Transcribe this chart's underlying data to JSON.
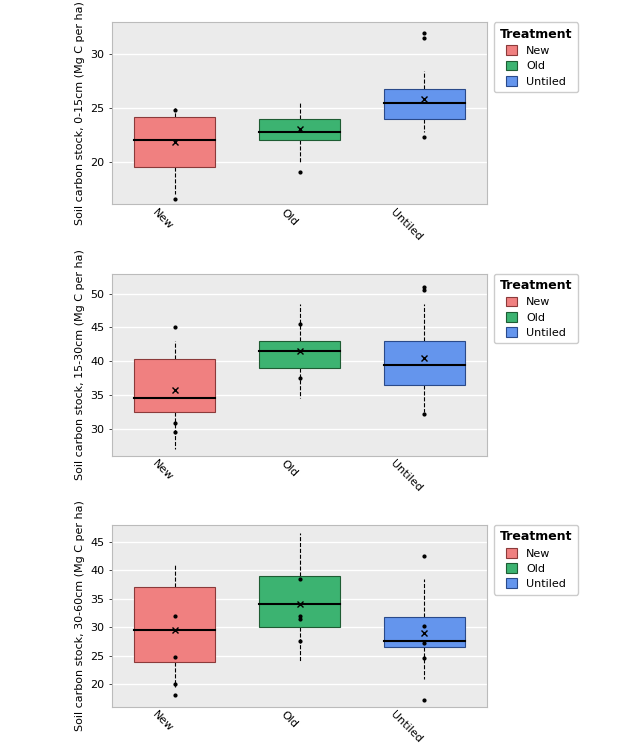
{
  "panels": [
    {
      "ylabel": "Soil carbon stock, 0-15cm (Mg C per ha)",
      "ylim": [
        16,
        33
      ],
      "yticks": [
        20,
        25,
        30
      ],
      "boxes": [
        {
          "label": "New",
          "color": "#F08080",
          "edge_color": "#8B3A3A",
          "median": 22.0,
          "q1": 19.5,
          "q3": 24.2,
          "whisker_low": 17.0,
          "whisker_high": 25.0,
          "mean": 21.8,
          "outliers": [
            16.5,
            24.8
          ]
        },
        {
          "label": "Old",
          "color": "#3CB371",
          "edge_color": "#1E5C33",
          "median": 22.8,
          "q1": 22.0,
          "q3": 24.0,
          "whisker_low": 20.0,
          "whisker_high": 25.5,
          "mean": 23.0,
          "outliers": [
            19.0
          ]
        },
        {
          "label": "Untiled",
          "color": "#6495ED",
          "edge_color": "#2A4A8A",
          "median": 25.5,
          "q1": 24.0,
          "q3": 26.8,
          "whisker_low": 22.8,
          "whisker_high": 28.5,
          "mean": 25.8,
          "outliers": [
            31.5,
            32.0,
            22.3
          ]
        }
      ]
    },
    {
      "ylabel": "Soil carbon stock, 15-30cm (Mg C per ha)",
      "ylim": [
        26,
        53
      ],
      "yticks": [
        30,
        35,
        40,
        45,
        50
      ],
      "boxes": [
        {
          "label": "New",
          "color": "#F08080",
          "edge_color": "#8B3A3A",
          "median": 34.5,
          "q1": 32.5,
          "q3": 40.3,
          "whisker_low": 27.0,
          "whisker_high": 43.0,
          "mean": 35.8,
          "outliers": [
            45.0,
            30.8,
            29.5
          ]
        },
        {
          "label": "Old",
          "color": "#3CB371",
          "edge_color": "#1E5C33",
          "median": 41.5,
          "q1": 39.0,
          "q3": 43.0,
          "whisker_low": 34.5,
          "whisker_high": 48.5,
          "mean": 41.5,
          "outliers": [
            45.5,
            37.5
          ]
        },
        {
          "label": "Untiled",
          "color": "#6495ED",
          "edge_color": "#2A4A8A",
          "median": 39.5,
          "q1": 36.5,
          "q3": 43.0,
          "whisker_low": 32.5,
          "whisker_high": 48.5,
          "mean": 40.5,
          "outliers": [
            51.0,
            50.5,
            32.2
          ]
        }
      ]
    },
    {
      "ylabel": "Soil carbon stock, 30-60cm (Mg C per ha)",
      "ylim": [
        16,
        48
      ],
      "yticks": [
        20,
        25,
        30,
        35,
        40,
        45
      ],
      "boxes": [
        {
          "label": "New",
          "color": "#F08080",
          "edge_color": "#8B3A3A",
          "median": 29.5,
          "q1": 23.8,
          "q3": 37.0,
          "whisker_low": 19.5,
          "whisker_high": 41.0,
          "mean": 29.5,
          "outliers": [
            18.0,
            20.0,
            24.8,
            32.0
          ]
        },
        {
          "label": "Old",
          "color": "#3CB371",
          "edge_color": "#1E5C33",
          "median": 34.0,
          "q1": 30.0,
          "q3": 39.0,
          "whisker_low": 24.0,
          "whisker_high": 46.5,
          "mean": 34.0,
          "outliers": [
            27.5,
            31.5,
            32.0,
            38.5
          ]
        },
        {
          "label": "Untiled",
          "color": "#6495ED",
          "edge_color": "#2A4A8A",
          "median": 27.5,
          "q1": 26.5,
          "q3": 31.8,
          "whisker_low": 20.8,
          "whisker_high": 38.5,
          "mean": 29.0,
          "outliers": [
            17.2,
            42.5,
            24.5,
            27.2,
            30.2
          ]
        }
      ]
    }
  ],
  "treatments": [
    "New",
    "Old",
    "Untiled"
  ],
  "treatment_colors": [
    "#F08080",
    "#3CB371",
    "#6495ED"
  ],
  "treatment_edge_colors": [
    "#8B3A3A",
    "#1E5C33",
    "#2A4A8A"
  ],
  "x_positions": [
    1,
    2,
    3
  ],
  "box_width": 0.65,
  "background_color": "#FFFFFF",
  "panel_bg_color": "#EBEBEB",
  "grid_color": "#FFFFFF",
  "ylabel_fontsize": 8,
  "tick_fontsize": 8,
  "legend_fontsize": 8,
  "legend_title_fontsize": 9
}
